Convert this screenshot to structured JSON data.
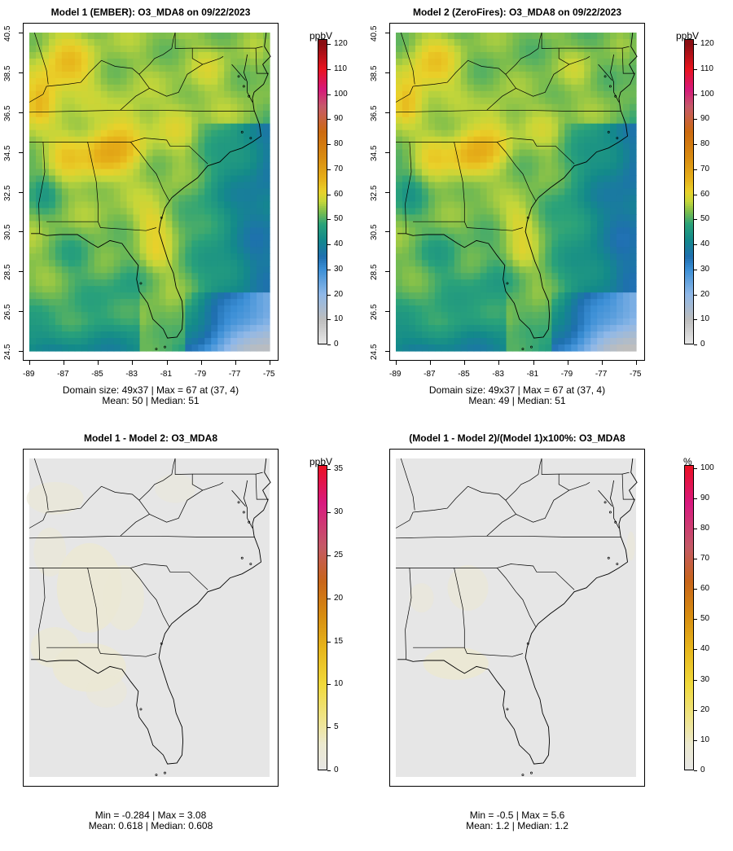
{
  "colors": {
    "o3_scale": [
      "#e8e8e8",
      "#bdbdbd",
      "#8fb8e8",
      "#3b8fd6",
      "#1f6fb0",
      "#138a8a",
      "#2aa27a",
      "#7bbd4d",
      "#c4d63a",
      "#e9d12a",
      "#e6b019",
      "#d88a10",
      "#cc6a10",
      "#c65a6a",
      "#d6187a",
      "#e8141e",
      "#8b0e12"
    ],
    "diff_scale": [
      "#e6e6e6",
      "#ece9cf",
      "#efe48a",
      "#f0d93a",
      "#e7b71c",
      "#d78c10",
      "#c8651a",
      "#c45a66",
      "#d81a80",
      "#ea1020"
    ],
    "map_bg_diff": "#e6e6e6",
    "diff_tint": "#ebe8d4",
    "outline": "#000000"
  },
  "panels": [
    {
      "title": "Model 1 (EMBER): O3_MDA8 on 09/22/2023",
      "unit": "ppbV",
      "stats_line1": "Domain size: 49x37 | Max = 67 at (37, 4)",
      "stats_line2": "Mean: 50 |  Median: 51",
      "colorbar_ticks": [
        "0",
        "10",
        "20",
        "30",
        "40",
        "50",
        "60",
        "70",
        "80",
        "90",
        "100",
        "110",
        "120"
      ],
      "xticks": [
        "-89",
        "-87",
        "-85",
        "-83",
        "-81",
        "-79",
        "-77",
        "-75"
      ],
      "yticks": [
        "24.5",
        "26.5",
        "28.5",
        "30.5",
        "32.5",
        "34.5",
        "36.5",
        "38.5",
        "40.5"
      ]
    },
    {
      "title": "Model 2 (ZeroFires): O3_MDA8 on 09/22/2023",
      "unit": "ppbV",
      "stats_line1": "Domain size: 49x37 | Max = 67 at (37, 4)",
      "stats_line2": "Mean: 49 |  Median: 51",
      "colorbar_ticks": [
        "0",
        "10",
        "20",
        "30",
        "40",
        "50",
        "60",
        "70",
        "80",
        "90",
        "100",
        "110",
        "120"
      ],
      "xticks": [
        "-89",
        "-87",
        "-85",
        "-83",
        "-81",
        "-79",
        "-77",
        "-75"
      ],
      "yticks": [
        "24.5",
        "26.5",
        "28.5",
        "30.5",
        "32.5",
        "34.5",
        "36.5",
        "38.5",
        "40.5"
      ]
    },
    {
      "title": "Model 1 - Model 2: O3_MDA8",
      "unit": "ppbV",
      "stats_line1": "Min = -0.284 | Max = 3.08",
      "stats_line2": "Mean: 0.618 |  Median: 0.608",
      "colorbar_ticks": [
        "0",
        "5",
        "10",
        "15",
        "20",
        "25",
        "30",
        "35"
      ]
    },
    {
      "title": "(Model 1 - Model 2)/(Model 1)x100%: O3_MDA8",
      "unit": "%",
      "stats_line1": "Min = -0.5 | Max = 5.6",
      "stats_line2": "Mean: 1.2 |  Median: 1.2",
      "colorbar_ticks": [
        "0",
        "10",
        "20",
        "30",
        "40",
        "50",
        "60",
        "70",
        "80",
        "90",
        "100"
      ]
    }
  ]
}
